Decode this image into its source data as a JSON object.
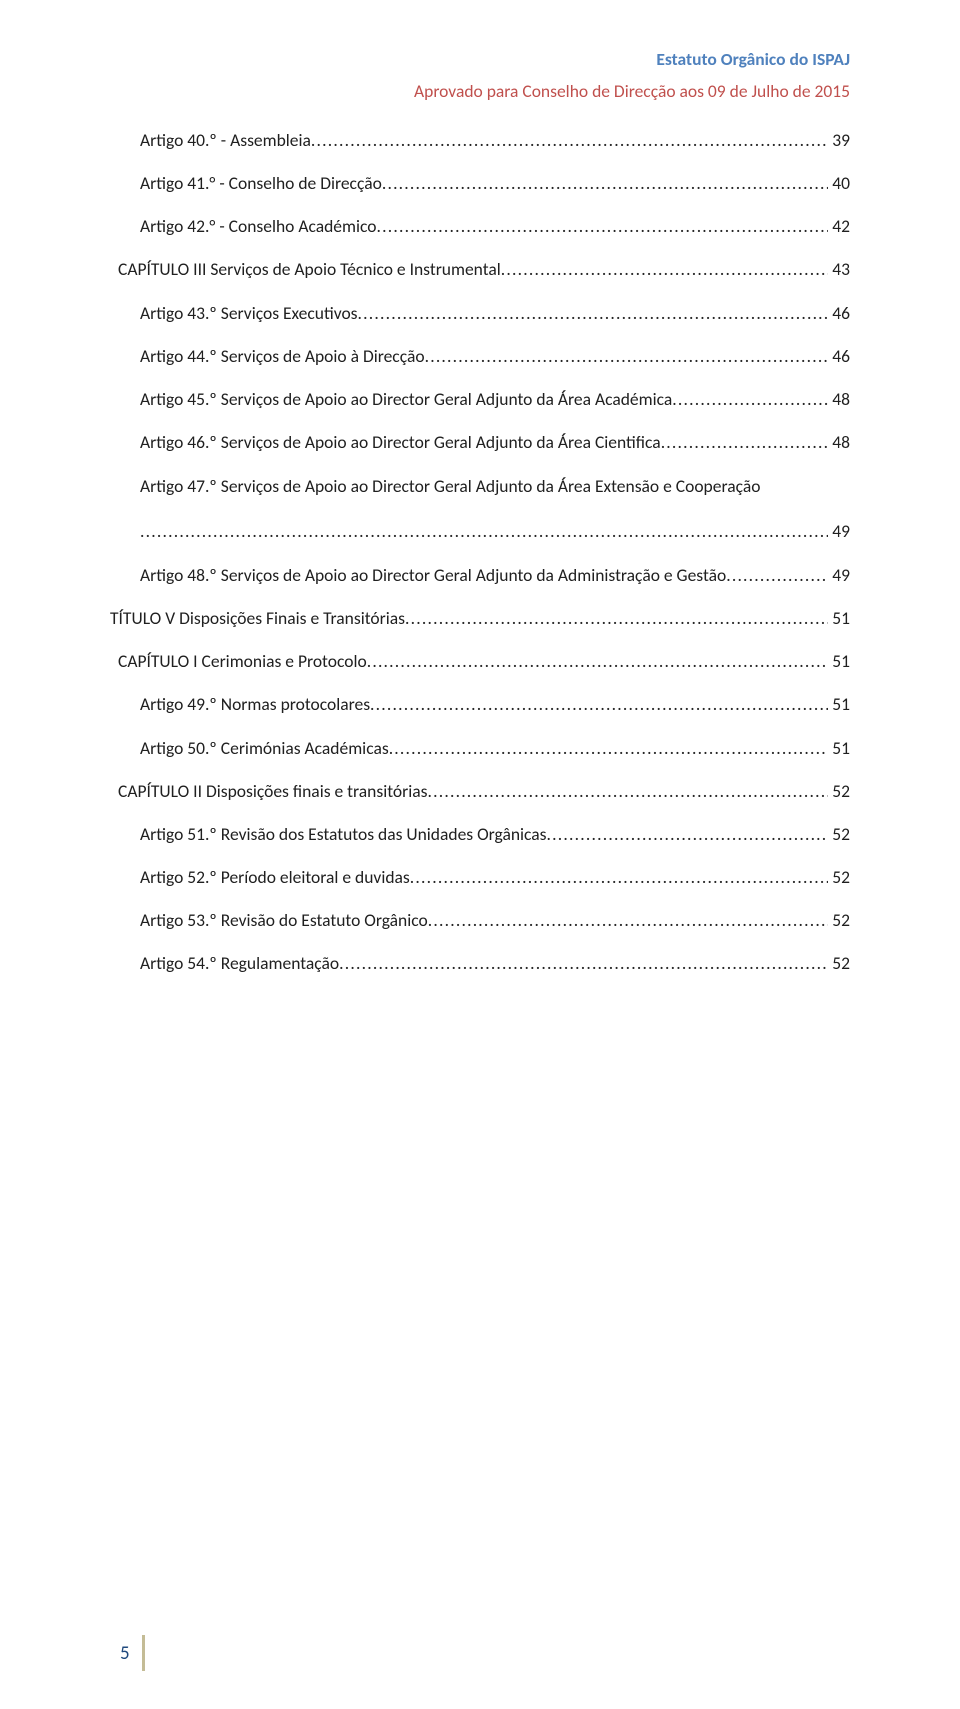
{
  "colors": {
    "header_title": "#4F81BD",
    "header_subtitle": "#C0504D",
    "text": "#202020",
    "footer_text": "#1F497D",
    "footer_bar": "#C4BC96"
  },
  "header": {
    "title": "Estatuto Orgânico do ISPAJ",
    "subtitle": "Aprovado para Conselho de Direcção aos 09 de Julho de 2015"
  },
  "toc": [
    {
      "level": 2,
      "label": "Artigo 40.º - Assembleia",
      "page": "39"
    },
    {
      "level": 2,
      "label": "Artigo 41.° - Conselho de Direcção",
      "page": "40"
    },
    {
      "level": 2,
      "label": "Artigo 42.° - Conselho Académico",
      "page": "42"
    },
    {
      "level": 1,
      "label": "CAPÍTULO III Serviços de Apoio Técnico e Instrumental",
      "page": "43"
    },
    {
      "level": 2,
      "label": "Artigo 43.º Serviços Executivos",
      "page": "46"
    },
    {
      "level": 2,
      "label": "Artigo 44.º Serviços de Apoio à Direcção",
      "page": "46"
    },
    {
      "level": 2,
      "label": "Artigo 45.º Serviços de Apoio ao Director Geral Adjunto da Área Académica",
      "page": "48"
    },
    {
      "level": 2,
      "label": "Artigo 46.º Serviços de Apoio ao Director Geral Adjunto da Área Cientifica",
      "page": "48"
    },
    {
      "level": 2,
      "label": "Artigo 47.º Serviços de Apoio ao Director Geral Adjunto da Área Extensão e Cooperação",
      "wrap": true,
      "page": "49"
    },
    {
      "level": 2,
      "label": "Artigo 48.º Serviços de Apoio ao Director Geral Adjunto da Administração e Gestão",
      "page": "49"
    },
    {
      "level": 0,
      "label": "TÍTULO V Disposições Finais e Transitórias",
      "page": "51"
    },
    {
      "level": 1,
      "label": "CAPÍTULO I Cerimonias e Protocolo",
      "page": "51"
    },
    {
      "level": 2,
      "label": "Artigo 49.º Normas protocolares",
      "page": "51"
    },
    {
      "level": 2,
      "label": "Artigo 50.º Cerimónias Académicas",
      "page": "51"
    },
    {
      "level": 1,
      "label": "CAPÍTULO II Disposições finais e transitórias",
      "page": "52"
    },
    {
      "level": 2,
      "label": "Artigo 51.º Revisão dos Estatutos das Unidades Orgânicas",
      "page": "52"
    },
    {
      "level": 2,
      "label": "Artigo 52.º Período eleitoral e duvidas",
      "page": "52"
    },
    {
      "level": 2,
      "label": "Artigo 53.º Revisão do Estatuto Orgânico",
      "page": "52"
    },
    {
      "level": 2,
      "label": "Artigo 54.º Regulamentação",
      "page": "52"
    }
  ],
  "footer": {
    "page_number": "5"
  }
}
